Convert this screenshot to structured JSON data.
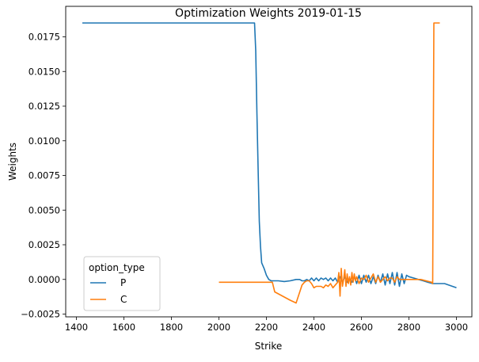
{
  "chart_data": {
    "type": "line",
    "title": "Optimization Weights 2019-01-15",
    "xlabel": "Strike",
    "ylabel": "Weights",
    "xlim": [
      1355,
      3065
    ],
    "ylim": [
      -0.0027,
      0.0197
    ],
    "x_ticks": [
      1400,
      1600,
      1800,
      2000,
      2200,
      2400,
      2600,
      2800,
      3000
    ],
    "x_tick_labels": [
      "1400",
      "1600",
      "1800",
      "2000",
      "2200",
      "2400",
      "2600",
      "2800",
      "3000"
    ],
    "y_ticks": [
      -0.0025,
      0.0,
      0.0025,
      0.005,
      0.0075,
      0.01,
      0.0125,
      0.015,
      0.0175
    ],
    "y_tick_labels": [
      "−0.0025",
      "0.0000",
      "0.0025",
      "0.0050",
      "0.0075",
      "0.0100",
      "0.0125",
      "0.0150",
      "0.0175"
    ],
    "grid": false,
    "legend": {
      "title": "option_type",
      "placement": "lower-left"
    },
    "series": [
      {
        "name": "P",
        "color": "#1f77b4",
        "x": [
          1425,
          1600,
          1800,
          2000,
          2100,
          2150,
          2155,
          2160,
          2165,
          2170,
          2175,
          2180,
          2190,
          2200,
          2210,
          2220,
          2230,
          2250,
          2275,
          2300,
          2325,
          2340,
          2350,
          2360,
          2370,
          2380,
          2390,
          2400,
          2410,
          2420,
          2430,
          2440,
          2450,
          2460,
          2470,
          2480,
          2490,
          2500,
          2510,
          2520,
          2530,
          2540,
          2550,
          2560,
          2570,
          2580,
          2590,
          2600,
          2610,
          2620,
          2630,
          2640,
          2650,
          2660,
          2670,
          2680,
          2690,
          2700,
          2710,
          2720,
          2730,
          2740,
          2750,
          2760,
          2770,
          2780,
          2790,
          2800,
          2820,
          2840,
          2860,
          2880,
          2900,
          2950,
          3000
        ],
        "y": [
          0.0185,
          0.0185,
          0.0185,
          0.0185,
          0.0185,
          0.0185,
          0.0165,
          0.012,
          0.008,
          0.0042,
          0.0024,
          0.0012,
          0.0008,
          0.0003,
          0.0,
          -0.0001,
          -0.0001,
          -0.0001,
          -0.00015,
          -0.0001,
          0.0,
          0.0,
          -0.0001,
          -0.0001,
          0.0,
          -0.0001,
          0.0001,
          -0.0001,
          0.0001,
          -0.0001,
          0.0001,
          0.0,
          0.0001,
          -0.0001,
          0.0001,
          -0.0001,
          0.0001,
          -0.0002,
          0.0002,
          -0.0002,
          0.0002,
          -0.0002,
          0.0001,
          -0.0002,
          0.0002,
          -0.0003,
          0.0003,
          -0.0003,
          0.0003,
          -0.0002,
          0.0003,
          -0.0003,
          0.0002,
          -0.0003,
          0.0003,
          -0.0002,
          0.0004,
          -0.0004,
          0.0004,
          -0.0003,
          0.0005,
          -0.0004,
          0.0005,
          -0.0005,
          0.0004,
          -0.0003,
          0.0003,
          0.0002,
          0.0001,
          0.0,
          -0.0001,
          -0.0002,
          -0.0003,
          -0.0003,
          -0.0006
        ]
      },
      {
        "name": "C",
        "color": "#ff7f0e",
        "x": [
          2000,
          2050,
          2100,
          2150,
          2200,
          2225,
          2235,
          2300,
          2325,
          2350,
          2360,
          2370,
          2380,
          2390,
          2400,
          2410,
          2420,
          2430,
          2440,
          2450,
          2460,
          2470,
          2480,
          2490,
          2500,
          2505,
          2510,
          2515,
          2520,
          2525,
          2530,
          2535,
          2540,
          2545,
          2550,
          2555,
          2560,
          2565,
          2570,
          2575,
          2580,
          2590,
          2600,
          2610,
          2620,
          2630,
          2640,
          2650,
          2660,
          2670,
          2680,
          2690,
          2700,
          2710,
          2720,
          2730,
          2740,
          2750,
          2760,
          2770,
          2780,
          2800,
          2850,
          2895,
          2900,
          2905,
          2910,
          2920,
          2930
        ],
        "y": [
          -0.0002,
          -0.0002,
          -0.0002,
          -0.0002,
          -0.0002,
          -0.0002,
          -0.0009,
          -0.0015,
          -0.0017,
          -0.0004,
          -0.0002,
          -0.0001,
          -0.0001,
          -0.0003,
          -0.0006,
          -0.0005,
          -0.0005,
          -0.0005,
          -0.0006,
          -0.0004,
          -0.0005,
          -0.0003,
          -0.0006,
          -0.0004,
          -0.0002,
          0.0005,
          -0.0012,
          0.0008,
          -0.0005,
          0.0,
          0.0007,
          -0.0005,
          0.0004,
          -0.0003,
          0.0002,
          -0.0004,
          0.0005,
          -0.0002,
          0.0004,
          -0.0001,
          0.0002,
          -0.0003,
          0.0001,
          0.0,
          0.0003,
          -0.0002,
          0.0001,
          0.0004,
          -0.0002,
          0.0002,
          -0.0002,
          0.0,
          0.0002,
          -0.0001,
          0.0001,
          0.0001,
          -0.0002,
          0.0002,
          0.0,
          0.0,
          0.0,
          0.0,
          0.0,
          -0.0002,
          -0.0003,
          0.0185,
          0.0185,
          0.0185,
          0.0185
        ]
      }
    ]
  }
}
